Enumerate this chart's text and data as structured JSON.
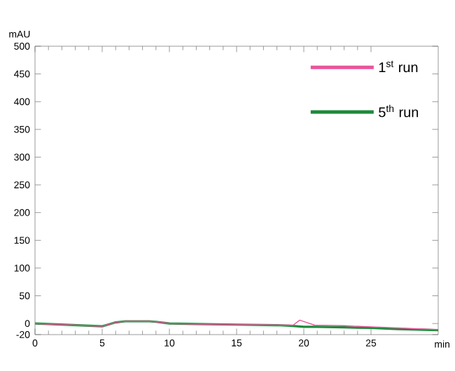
{
  "chart_data": {
    "type": "line",
    "xlabel": "min",
    "ylabel": "mAU",
    "xlim": [
      0,
      30
    ],
    "xticks": [
      0,
      5,
      10,
      15,
      20,
      25
    ],
    "ylim": [
      -20,
      500
    ],
    "yticks": [
      -20,
      0,
      50,
      100,
      150,
      200,
      250,
      300,
      350,
      400,
      450,
      500
    ],
    "legend": "top right",
    "grid": false,
    "series": [
      {
        "name": "1$^{st}$ run",
        "color": "#e8559a",
        "x": [
          0,
          1,
          3,
          5,
          5.3,
          6,
          6.7,
          8.5,
          9,
          10,
          12,
          15,
          18,
          19.2,
          19.7,
          20.2,
          20.8,
          23,
          25,
          27,
          30
        ],
        "values": [
          0,
          -1,
          -3,
          -5,
          -3,
          2,
          4,
          4,
          3,
          0,
          -1,
          -2,
          -3,
          -3,
          6,
          2,
          -3,
          -4,
          -6,
          -8,
          -11
        ]
      },
      {
        "name": "5$^{th}$ run",
        "color": "#1e8a3c",
        "x": [
          0,
          1,
          3,
          5,
          5.3,
          6,
          6.7,
          8.5,
          9,
          10,
          12,
          15,
          18,
          19,
          20,
          21,
          23,
          25,
          27,
          30
        ],
        "values": [
          0,
          -1,
          -3,
          -5,
          -3,
          2,
          4,
          4,
          3,
          0,
          -1,
          -2,
          -3,
          -4,
          -6,
          -6,
          -7,
          -8,
          -10,
          -12
        ]
      }
    ]
  }
}
